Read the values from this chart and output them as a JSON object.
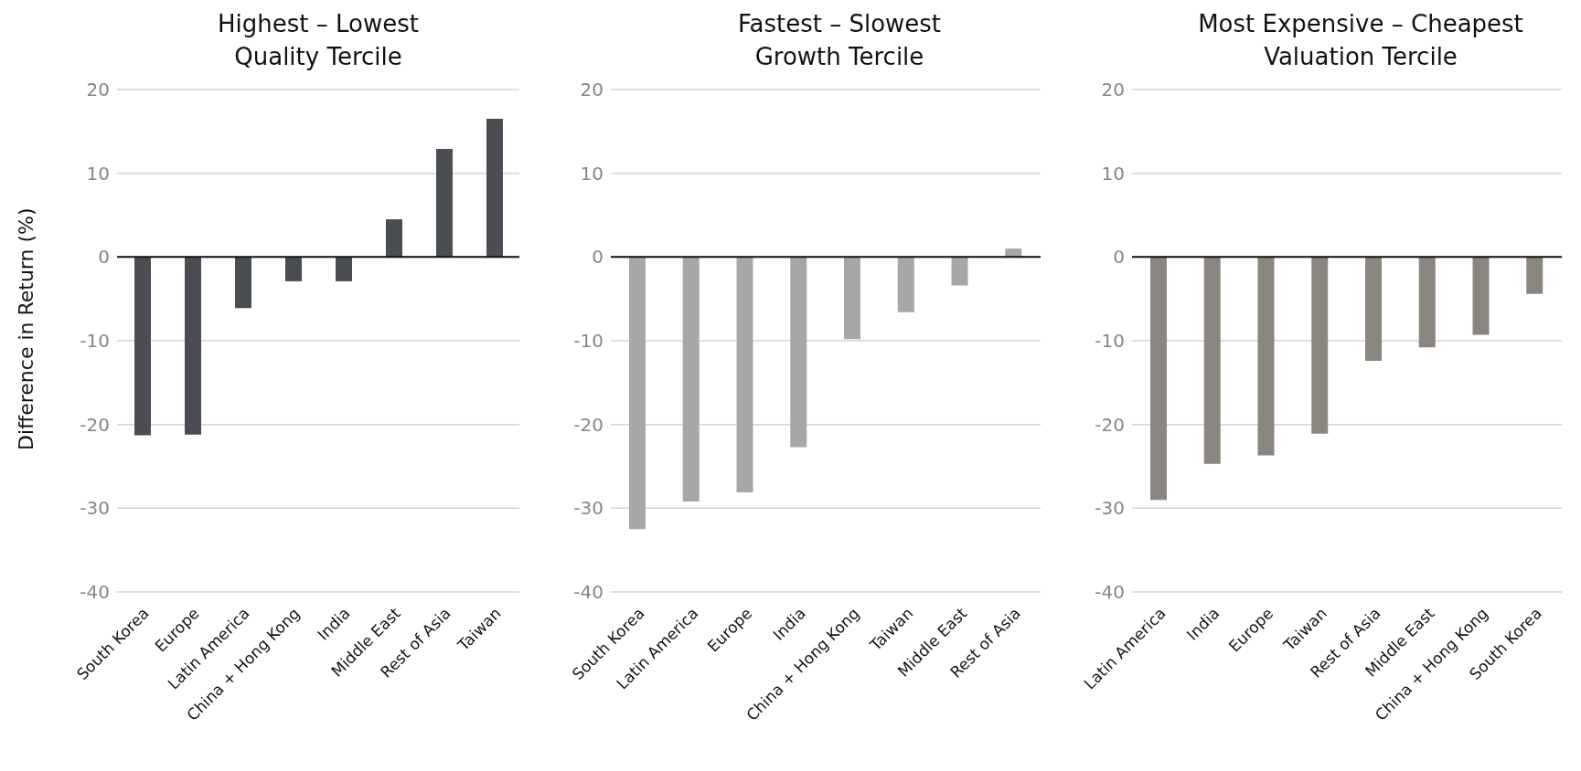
{
  "chart_data": [
    {
      "type": "bar",
      "title": "Highest – Lowest\nQuality Tercile",
      "ylabel": "Difference in Return (%)",
      "categories": [
        "South Korea",
        "Europe",
        "Latin America",
        "China + Hong Kong",
        "India",
        "Middle East",
        "Rest of Asia",
        "Taiwan"
      ],
      "values": [
        -21.3,
        -21.2,
        -6.1,
        -2.9,
        -2.9,
        4.5,
        12.9,
        16.5
      ],
      "color": "#4a4d51",
      "ylim": [
        -40,
        20
      ],
      "yticks": [
        -40,
        -30,
        -20,
        -10,
        0,
        10,
        20
      ],
      "grid": "y"
    },
    {
      "type": "bar",
      "title": "Fastest – Slowest\nGrowth Tercile",
      "categories": [
        "South Korea",
        "Latin America",
        "Europe",
        "India",
        "China + Hong Kong",
        "Taiwan",
        "Middle East",
        "Rest of Asia"
      ],
      "values": [
        -32.5,
        -29.2,
        -28.1,
        -22.7,
        -9.8,
        -6.6,
        -3.4,
        1.0
      ],
      "color": "#a7a7a9",
      "ylim": [
        -40,
        20
      ],
      "yticks": [
        -40,
        -30,
        -20,
        -10,
        0,
        10,
        20
      ],
      "grid": "y"
    },
    {
      "type": "bar",
      "title": "Most Expensive – Cheapest\nValuation Tercile",
      "categories": [
        "Latin America",
        "India",
        "Europe",
        "Taiwan",
        "Rest of Asia",
        "Middle East",
        "China + Hong Kong",
        "South Korea"
      ],
      "values": [
        -29.0,
        -24.7,
        -23.7,
        -21.1,
        -12.4,
        -10.8,
        -9.3,
        -4.4
      ],
      "color": "#8a857f",
      "ylim": [
        -40,
        20
      ],
      "yticks": [
        -40,
        -30,
        -20,
        -10,
        0,
        10,
        20
      ],
      "grid": "y"
    }
  ]
}
